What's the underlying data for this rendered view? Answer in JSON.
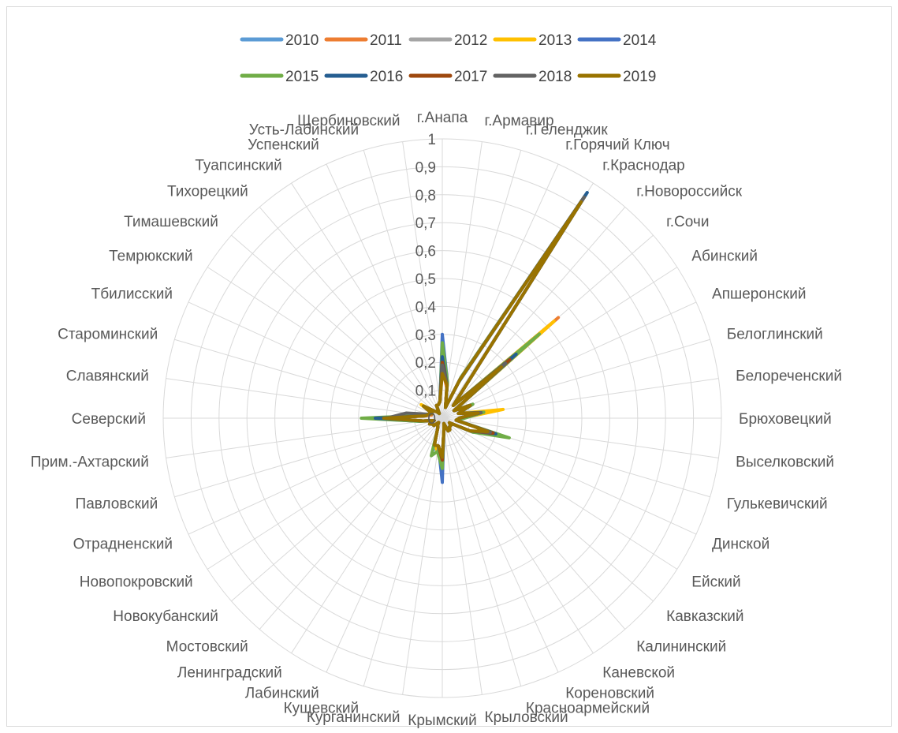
{
  "chart_data": {
    "type": "radar",
    "title": "",
    "ylim": [
      0,
      1
    ],
    "rticks": [
      "0",
      "0,1",
      "0,2",
      "0,3",
      "0,4",
      "0,5",
      "0,6",
      "0,7",
      "0,8",
      "0,9",
      "1"
    ],
    "grid": true,
    "legend_position": "top",
    "categories": [
      "г.Анапа",
      "г.Армавир",
      "г.Геленджик",
      "г.Горячий Ключ",
      "г.Краснодар",
      "г.Новороссийск",
      "г.Сочи",
      "Абинский",
      "Апшеронский",
      "Белоглинский",
      "Белореченский",
      "Брюховецкий",
      "Выселковский",
      "Гулькевичский",
      "Динской",
      "Ейский",
      "Кавказский",
      "Калининский",
      "Каневской",
      "Кореновский",
      "Красноармейский",
      "Крыловский",
      "Крымский",
      "Курганинский",
      "Кущевский",
      "Лабинский",
      "Ленинградский",
      "Мостовский",
      "Новокубанский",
      "Новопокровский",
      "Отрадненский",
      "Павловский",
      "Прим.-Ахтарский",
      "Северский",
      "Славянский",
      "Староминский",
      "Тбилисский",
      "Темрюкский",
      "Тимашевский",
      "Тихорецкий",
      "Туапсинский",
      "Успенский",
      "Усть-Лабинский",
      "Щербиновский"
    ],
    "series": [
      {
        "name": "2010",
        "color": "#5b9bd5",
        "values": [
          0.2,
          0.12,
          0.04,
          0.14,
          0.96,
          0.06,
          0.44,
          0.05,
          0.1,
          0.06,
          0.14,
          0.06,
          0.05,
          0.2,
          0.12,
          0.03,
          0.04,
          0.04,
          0.05,
          0.05,
          0.02,
          0.04,
          0.14,
          0.1,
          0.12,
          0.04,
          0.03,
          0.02,
          0.04,
          0.04,
          0.05,
          0.03,
          0.08,
          0.26,
          0.07,
          0.05,
          0.04,
          0.08,
          0.04,
          0.03,
          0.02,
          0.05,
          0.05,
          0.06
        ]
      },
      {
        "name": "2011",
        "color": "#ed7d31",
        "values": [
          0.18,
          0.11,
          0.04,
          0.16,
          0.95,
          0.06,
          0.55,
          0.05,
          0.12,
          0.06,
          0.13,
          0.06,
          0.05,
          0.19,
          0.11,
          0.03,
          0.04,
          0.04,
          0.05,
          0.05,
          0.02,
          0.04,
          0.2,
          0.1,
          0.1,
          0.04,
          0.03,
          0.02,
          0.04,
          0.04,
          0.05,
          0.03,
          0.07,
          0.24,
          0.06,
          0.04,
          0.04,
          0.08,
          0.04,
          0.03,
          0.02,
          0.05,
          0.05,
          0.06
        ]
      },
      {
        "name": "2012",
        "color": "#a5a5a5",
        "values": [
          0.19,
          0.12,
          0.04,
          0.15,
          0.95,
          0.06,
          0.5,
          0.05,
          0.11,
          0.06,
          0.2,
          0.07,
          0.05,
          0.2,
          0.11,
          0.03,
          0.04,
          0.04,
          0.05,
          0.05,
          0.02,
          0.04,
          0.16,
          0.1,
          0.11,
          0.04,
          0.03,
          0.02,
          0.04,
          0.04,
          0.05,
          0.03,
          0.07,
          0.25,
          0.07,
          0.05,
          0.04,
          0.08,
          0.04,
          0.03,
          0.02,
          0.05,
          0.05,
          0.06
        ]
      },
      {
        "name": "2013",
        "color": "#ffc000",
        "values": [
          0.2,
          0.12,
          0.04,
          0.15,
          0.95,
          0.06,
          0.53,
          0.05,
          0.11,
          0.06,
          0.22,
          0.07,
          0.05,
          0.21,
          0.11,
          0.03,
          0.04,
          0.04,
          0.05,
          0.05,
          0.02,
          0.04,
          0.18,
          0.12,
          0.1,
          0.04,
          0.03,
          0.02,
          0.04,
          0.04,
          0.05,
          0.03,
          0.07,
          0.24,
          0.07,
          0.05,
          0.04,
          0.09,
          0.04,
          0.03,
          0.02,
          0.05,
          0.05,
          0.06
        ]
      },
      {
        "name": "2014",
        "color": "#4472c4",
        "values": [
          0.3,
          0.13,
          0.04,
          0.16,
          0.96,
          0.06,
          0.42,
          0.05,
          0.12,
          0.06,
          0.15,
          0.06,
          0.05,
          0.22,
          0.12,
          0.03,
          0.04,
          0.04,
          0.05,
          0.05,
          0.02,
          0.04,
          0.23,
          0.1,
          0.1,
          0.04,
          0.03,
          0.02,
          0.04,
          0.04,
          0.05,
          0.03,
          0.07,
          0.23,
          0.06,
          0.05,
          0.04,
          0.08,
          0.04,
          0.03,
          0.02,
          0.05,
          0.05,
          0.06
        ]
      },
      {
        "name": "2015",
        "color": "#70ad47",
        "values": [
          0.27,
          0.13,
          0.04,
          0.16,
          0.95,
          0.06,
          0.46,
          0.05,
          0.12,
          0.06,
          0.15,
          0.08,
          0.05,
          0.25,
          0.12,
          0.03,
          0.04,
          0.04,
          0.05,
          0.05,
          0.02,
          0.04,
          0.18,
          0.12,
          0.14,
          0.04,
          0.03,
          0.02,
          0.04,
          0.04,
          0.05,
          0.03,
          0.08,
          0.29,
          0.07,
          0.05,
          0.04,
          0.08,
          0.04,
          0.03,
          0.02,
          0.05,
          0.05,
          0.06
        ]
      },
      {
        "name": "2016",
        "color": "#255e91",
        "values": [
          0.22,
          0.12,
          0.04,
          0.15,
          0.96,
          0.06,
          0.35,
          0.05,
          0.11,
          0.06,
          0.14,
          0.06,
          0.05,
          0.2,
          0.11,
          0.03,
          0.04,
          0.04,
          0.05,
          0.05,
          0.02,
          0.04,
          0.15,
          0.1,
          0.1,
          0.04,
          0.03,
          0.02,
          0.04,
          0.04,
          0.05,
          0.03,
          0.07,
          0.24,
          0.06,
          0.05,
          0.04,
          0.08,
          0.04,
          0.03,
          0.02,
          0.05,
          0.05,
          0.06
        ]
      },
      {
        "name": "2017",
        "color": "#9e480e",
        "values": [
          0.2,
          0.12,
          0.04,
          0.15,
          0.94,
          0.06,
          0.32,
          0.05,
          0.11,
          0.06,
          0.14,
          0.06,
          0.05,
          0.19,
          0.11,
          0.03,
          0.04,
          0.04,
          0.05,
          0.05,
          0.02,
          0.04,
          0.15,
          0.1,
          0.1,
          0.04,
          0.03,
          0.02,
          0.04,
          0.04,
          0.05,
          0.03,
          0.07,
          0.2,
          0.06,
          0.05,
          0.04,
          0.08,
          0.04,
          0.03,
          0.02,
          0.05,
          0.05,
          0.06
        ]
      },
      {
        "name": "2018",
        "color": "#636363",
        "values": [
          0.19,
          0.12,
          0.04,
          0.15,
          0.94,
          0.06,
          0.3,
          0.05,
          0.11,
          0.06,
          0.14,
          0.06,
          0.05,
          0.18,
          0.11,
          0.03,
          0.04,
          0.04,
          0.05,
          0.05,
          0.02,
          0.04,
          0.14,
          0.1,
          0.1,
          0.04,
          0.03,
          0.02,
          0.04,
          0.04,
          0.05,
          0.03,
          0.07,
          0.2,
          0.13,
          0.05,
          0.04,
          0.08,
          0.04,
          0.03,
          0.02,
          0.05,
          0.05,
          0.06
        ]
      },
      {
        "name": "2019",
        "color": "#997300",
        "values": [
          0.16,
          0.12,
          0.04,
          0.15,
          0.92,
          0.06,
          0.28,
          0.05,
          0.11,
          0.06,
          0.13,
          0.06,
          0.05,
          0.17,
          0.11,
          0.03,
          0.04,
          0.04,
          0.05,
          0.05,
          0.02,
          0.04,
          0.14,
          0.1,
          0.1,
          0.04,
          0.03,
          0.02,
          0.04,
          0.04,
          0.05,
          0.03,
          0.07,
          0.21,
          0.06,
          0.05,
          0.04,
          0.08,
          0.04,
          0.03,
          0.02,
          0.05,
          0.05,
          0.06
        ]
      }
    ]
  }
}
